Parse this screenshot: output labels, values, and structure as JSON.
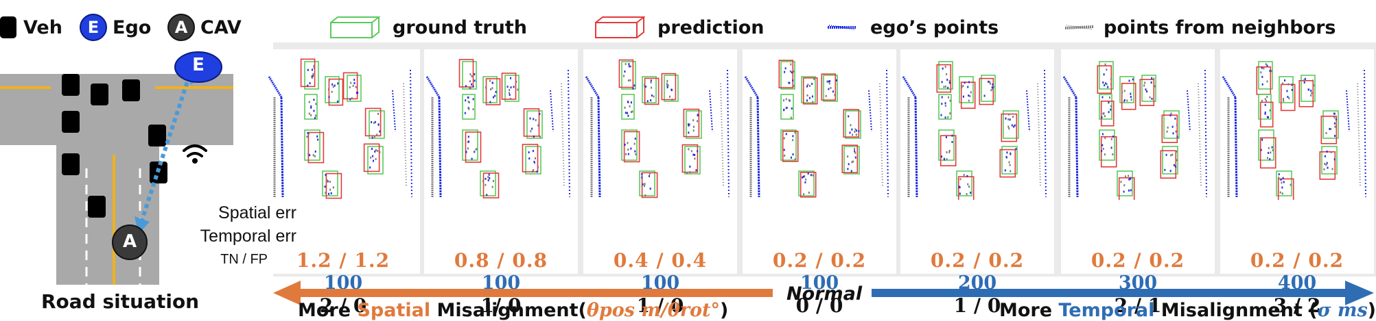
{
  "legend": {
    "veh": "Veh",
    "ego_badge": "E",
    "ego": "Ego",
    "cav_badge": "A",
    "cav": "CAV",
    "ground_truth": "ground truth",
    "prediction": "prediction",
    "ego_points": "ego’s points",
    "neighbor_points": "points from neighbors"
  },
  "colors": {
    "ground_truth": "#5cc95c",
    "prediction": "#e23a3a",
    "ego_points": "#1f2fe0",
    "neighbor_points": "#7a7a7a",
    "spatial": "#e07a3c",
    "temporal": "#2e6db4",
    "road": "#a9a9a9",
    "lane_yellow": "#f2b21b"
  },
  "road": {
    "ego_badge": "E",
    "cav_badge": "A",
    "caption": "Road situation"
  },
  "row_labels": {
    "spatial": "Spatial err",
    "temporal": "Temporal err",
    "tnfp": "TN / FP"
  },
  "panels": [
    {
      "spatial": "1.2 / 1.2",
      "temporal": "100",
      "tnfp": "2 / 0"
    },
    {
      "spatial": "0.8 / 0.8",
      "temporal": "100",
      "tnfp": "1/ 0"
    },
    {
      "spatial": "0.4 / 0.4",
      "temporal": "100",
      "tnfp": "1 / 0"
    },
    {
      "spatial": "0.2 / 0.2",
      "temporal": "100",
      "tnfp": "0 / 0"
    },
    {
      "spatial": "0.2 / 0.2",
      "temporal": "200",
      "tnfp": "1 / 0"
    },
    {
      "spatial": "0.2 / 0.2",
      "temporal": "300",
      "tnfp": "2 / 1"
    },
    {
      "spatial": "0.2 / 0.2",
      "temporal": "400",
      "tnfp": "3 / 2"
    }
  ],
  "axis": {
    "normal": "Normal",
    "left_more": "More ",
    "left_key": "Spatial",
    "left_mid": " Misalignment(",
    "left_math": "θpos m/θrot°",
    "left_close": ")",
    "right_more": "More ",
    "right_key": "Temporal",
    "right_mid": " Misalignment (",
    "right_math": "σ ms",
    "right_close": ")"
  }
}
